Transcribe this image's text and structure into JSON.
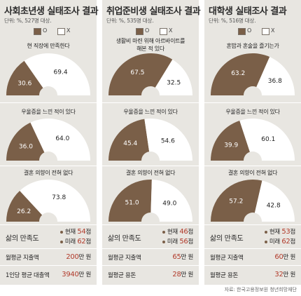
{
  "legend": {
    "o": "O",
    "x": "X"
  },
  "colors": {
    "o": "#7a5f48",
    "x": "#ffffff",
    "highlight": "#b13a2a",
    "panel": "#e8e6e1"
  },
  "source": "자료: 한국고용정보원 청년희망재단",
  "panels": [
    {
      "title": "사회초년생 실태조사 결과",
      "unit": "단위: %, 527명 대상.",
      "gauges": [
        {
          "title": "현 직장에 만족한다",
          "o": "30.6",
          "x": "69.4"
        },
        {
          "title": "우울증을 느낀 적이 있다",
          "o": "36.0",
          "x": "64.0"
        },
        {
          "title": "결혼 의향이 전혀 없다",
          "o": "26.2",
          "x": "73.8"
        }
      ],
      "stats": {
        "satisfaction_label": "삶의 만족도",
        "current_label": "현재",
        "current_value": "54",
        "current_unit": "점",
        "future_label": "미래",
        "future_value": "62",
        "future_unit": "점",
        "row1_label": "월평균 지출액",
        "row1_value": "200",
        "row1_unit": "만 원",
        "row2_label": "1인당 평균 대출액",
        "row2_value": "3940",
        "row2_unit": "만 원"
      }
    },
    {
      "title": "취업준비생 실태조사 결과",
      "unit": "단위: %, 535명 대상.",
      "gauges": [
        {
          "title": "생활비 마련 위해 아르바이트를\n해본 적 있다",
          "o": "67.5",
          "x": "32.5"
        },
        {
          "title": "우울증을 느낀 적이 있다",
          "o": "45.4",
          "x": "54.6"
        },
        {
          "title": "결혼 의향이 전혀 없다",
          "o": "51.0",
          "x": "49.0"
        }
      ],
      "stats": {
        "satisfaction_label": "삶의 만족도",
        "current_label": "현재",
        "current_value": "46",
        "current_unit": "점",
        "future_label": "미래",
        "future_value": "56",
        "future_unit": "점",
        "row1_label": "월평균 지출액",
        "row1_value": "65",
        "row1_unit": "만 원",
        "row2_label": "월평균 용돈",
        "row2_value": "28",
        "row2_unit": "만 원"
      }
    },
    {
      "title": "대학생 실태조사 결과",
      "unit": "단위: %, 516명 대상.",
      "gauges": [
        {
          "title": "혼밥과 혼술을 즐기는가",
          "o": "63.2",
          "x": "36.8"
        },
        {
          "title": "우울증을 느낀 적이 있다",
          "o": "39.9",
          "x": "60.1"
        },
        {
          "title": "결혼 의향이 전혀 없다",
          "o": "57.2",
          "x": "42.8"
        }
      ],
      "stats": {
        "satisfaction_label": "삶의 만족도",
        "current_label": "현재",
        "current_value": "53",
        "current_unit": "점",
        "future_label": "미래",
        "future_value": "62",
        "future_unit": "점",
        "row1_label": "월평균 지출액",
        "row1_value": "60",
        "row1_unit": "만 원",
        "row2_label": "월평균 용돈",
        "row2_value": "32",
        "row2_unit": "만 원"
      }
    }
  ],
  "chart_data": [
    {
      "type": "pie",
      "title": "사회초년생 실태조사 결과",
      "series": [
        {
          "name": "현 직장에 만족한다",
          "values": [
            30.6,
            69.4
          ]
        },
        {
          "name": "우울증을 느낀 적이 있다",
          "values": [
            36.0,
            64.0
          ]
        },
        {
          "name": "결혼 의향이 전혀 없다",
          "values": [
            26.2,
            73.8
          ]
        }
      ],
      "categories": [
        "O",
        "X"
      ]
    },
    {
      "type": "pie",
      "title": "취업준비생 실태조사 결과",
      "series": [
        {
          "name": "생활비 마련 위해 아르바이트를 해본 적 있다",
          "values": [
            67.5,
            32.5
          ]
        },
        {
          "name": "우울증을 느낀 적이 있다",
          "values": [
            45.4,
            54.6
          ]
        },
        {
          "name": "결혼 의향이 전혀 없다",
          "values": [
            51.0,
            49.0
          ]
        }
      ],
      "categories": [
        "O",
        "X"
      ]
    },
    {
      "type": "pie",
      "title": "대학생 실태조사 결과",
      "series": [
        {
          "name": "혼밥과 혼술을 즐기는가",
          "values": [
            63.2,
            36.8
          ]
        },
        {
          "name": "우울증을 느낀 적이 있다",
          "values": [
            39.9,
            60.1
          ]
        },
        {
          "name": "결혼 의향이 전혀 없다",
          "values": [
            57.2,
            42.8
          ]
        }
      ],
      "categories": [
        "O",
        "X"
      ]
    }
  ]
}
